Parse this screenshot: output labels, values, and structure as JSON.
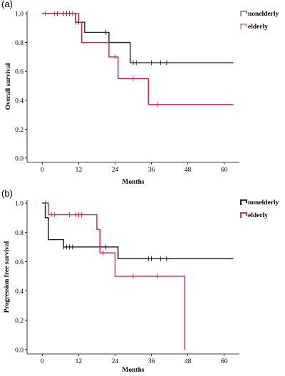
{
  "chart_data": [
    {
      "type": "line",
      "panel_label": "(a)",
      "xlabel": "Months",
      "ylabel": "Overall survival",
      "xlim": [
        -5,
        65
      ],
      "ylim": [
        -0.03,
        1.02
      ],
      "xticks": [
        0,
        12,
        24,
        36,
        48,
        60
      ],
      "yticks": [
        0.0,
        0.2,
        0.4,
        0.6,
        0.8,
        1.0
      ],
      "ytick_labels": [
        "0.0",
        "0.2",
        "0.4",
        "0.6",
        "0.8",
        "1.0"
      ],
      "legend_position": "top-right",
      "legend_thin": true,
      "series": [
        {
          "name": "nonelderly",
          "color": "#222222",
          "steps": [
            [
              0,
              1.0
            ],
            [
              11,
              0.94
            ],
            [
              14,
              0.87
            ],
            [
              22,
              0.8
            ],
            [
              29,
              0.66
            ],
            [
              63,
              0.66
            ]
          ],
          "censor": [
            [
              5,
              1.0
            ],
            [
              7,
              1.0
            ],
            [
              8,
              1.0
            ],
            [
              9,
              1.0
            ],
            [
              12,
              0.94
            ],
            [
              21,
              0.87
            ],
            [
              30,
              0.66
            ],
            [
              31,
              0.66
            ],
            [
              36,
              0.66
            ],
            [
              39,
              0.66
            ],
            [
              41,
              0.66
            ]
          ]
        },
        {
          "name": "elderly",
          "color": "#d81b4e",
          "steps": [
            [
              0,
              1.0
            ],
            [
              12,
              0.94
            ],
            [
              13,
              0.8
            ],
            [
              22,
              0.7
            ],
            [
              25,
              0.55
            ],
            [
              35,
              0.37
            ],
            [
              63,
              0.37
            ]
          ],
          "censor": [
            [
              1,
              1.0
            ],
            [
              4,
              1.0
            ],
            [
              10,
              1.0
            ],
            [
              11,
              0.94
            ],
            [
              24,
              0.7
            ],
            [
              30,
              0.55
            ],
            [
              38,
              0.37
            ]
          ]
        }
      ]
    },
    {
      "type": "line",
      "panel_label": "(b)",
      "xlabel": "Months",
      "ylabel": "Progression free survival",
      "xlim": [
        -5,
        65
      ],
      "ylim": [
        -0.03,
        1.02
      ],
      "xticks": [
        0,
        12,
        24,
        36,
        48,
        60
      ],
      "yticks": [
        0.0,
        0.2,
        0.4,
        0.6,
        0.8,
        1.0
      ],
      "ytick_labels": [
        "0.0",
        "0.2",
        "0.4",
        "0.6",
        "0.8",
        "1.0"
      ],
      "legend_position": "top-right",
      "legend_thin": false,
      "series": [
        {
          "name": "nonelderly",
          "color": "#111111",
          "steps": [
            [
              0,
              1.0
            ],
            [
              1,
              0.9
            ],
            [
              2,
              0.75
            ],
            [
              7,
              0.7
            ],
            [
              25,
              0.62
            ],
            [
              63,
              0.62
            ]
          ],
          "censor": [
            [
              7,
              0.7
            ],
            [
              8,
              0.7
            ],
            [
              9,
              0.7
            ],
            [
              10,
              0.7
            ],
            [
              21,
              0.7
            ],
            [
              35,
              0.62
            ],
            [
              36,
              0.62
            ],
            [
              39,
              0.62
            ],
            [
              41,
              0.62
            ]
          ]
        },
        {
          "name": "elderly",
          "color": "#d81b4e",
          "steps": [
            [
              0,
              1.0
            ],
            [
              2,
              0.92
            ],
            [
              18,
              0.82
            ],
            [
              19,
              0.66
            ],
            [
              24,
              0.5
            ],
            [
              47,
              0.0
            ]
          ],
          "censor": [
            [
              1,
              1.0
            ],
            [
              3,
              0.92
            ],
            [
              4,
              0.92
            ],
            [
              9,
              0.92
            ],
            [
              11,
              0.92
            ],
            [
              12,
              0.92
            ],
            [
              13,
              0.92
            ],
            [
              20,
              0.66
            ],
            [
              30,
              0.5
            ],
            [
              38,
              0.5
            ]
          ]
        }
      ]
    }
  ]
}
